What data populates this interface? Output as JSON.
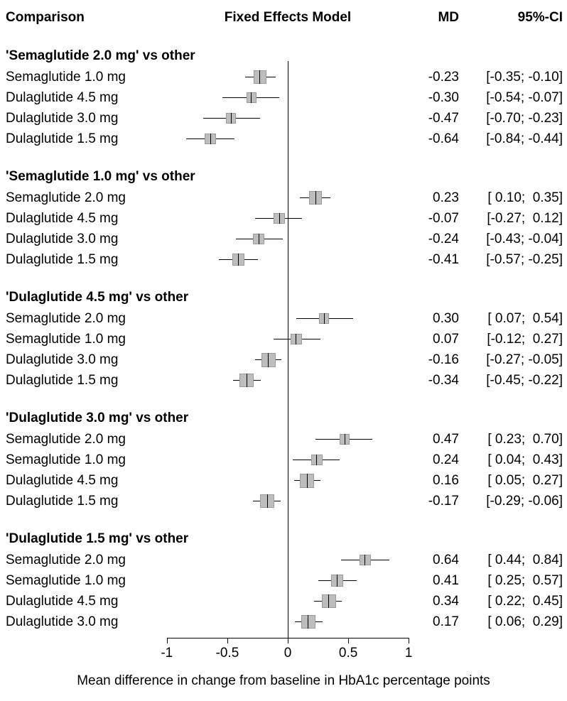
{
  "header": {
    "comparison": "Comparison",
    "model": "Fixed Effects Model",
    "md": "MD",
    "ci": "95%-CI"
  },
  "chart_data": {
    "type": "forest",
    "title": "",
    "xlabel": "Mean difference in change from baseline in HbA1c percentage points",
    "xlim": [
      -1,
      1
    ],
    "x_ticks": [
      -1,
      -0.5,
      0,
      0.5,
      1
    ],
    "x_tick_labels": [
      "-1",
      "-0.5",
      "0",
      "0.5",
      "1"
    ],
    "reference_line": 0,
    "marker_color": "#bdbdbd",
    "groups": [
      {
        "title": "'Semaglutide 2.0 mg' vs other",
        "rows": [
          {
            "label": "Semaglutide 1.0 mg",
            "md": -0.23,
            "lower": -0.35,
            "upper": -0.1,
            "md_text": "-0.23",
            "ci_text": "[-0.35; -0.10]"
          },
          {
            "label": "Dulaglutide 4.5 mg",
            "md": -0.3,
            "lower": -0.54,
            "upper": -0.07,
            "md_text": "-0.30",
            "ci_text": "[-0.54; -0.07]"
          },
          {
            "label": "Dulaglutide 3.0 mg",
            "md": -0.47,
            "lower": -0.7,
            "upper": -0.23,
            "md_text": "-0.47",
            "ci_text": "[-0.70; -0.23]"
          },
          {
            "label": "Dulaglutide 1.5 mg",
            "md": -0.64,
            "lower": -0.84,
            "upper": -0.44,
            "md_text": "-0.64",
            "ci_text": "[-0.84; -0.44]"
          }
        ]
      },
      {
        "title": "'Semaglutide 1.0 mg' vs other",
        "rows": [
          {
            "label": "Semaglutide 2.0 mg",
            "md": 0.23,
            "lower": 0.1,
            "upper": 0.35,
            "md_text": "0.23",
            "ci_text": "[ 0.10;  0.35]"
          },
          {
            "label": "Dulaglutide 4.5 mg",
            "md": -0.07,
            "lower": -0.27,
            "upper": 0.12,
            "md_text": "-0.07",
            "ci_text": "[-0.27;  0.12]"
          },
          {
            "label": "Dulaglutide 3.0 mg",
            "md": -0.24,
            "lower": -0.43,
            "upper": -0.04,
            "md_text": "-0.24",
            "ci_text": "[-0.43; -0.04]"
          },
          {
            "label": "Dulaglutide 1.5 mg",
            "md": -0.41,
            "lower": -0.57,
            "upper": -0.25,
            "md_text": "-0.41",
            "ci_text": "[-0.57; -0.25]"
          }
        ]
      },
      {
        "title": "'Dulaglutide 4.5 mg' vs other",
        "rows": [
          {
            "label": "Semaglutide 2.0 mg",
            "md": 0.3,
            "lower": 0.07,
            "upper": 0.54,
            "md_text": "0.30",
            "ci_text": "[ 0.07;  0.54]"
          },
          {
            "label": "Semaglutide 1.0 mg",
            "md": 0.07,
            "lower": -0.12,
            "upper": 0.27,
            "md_text": "0.07",
            "ci_text": "[-0.12;  0.27]"
          },
          {
            "label": "Dulaglutide 3.0 mg",
            "md": -0.16,
            "lower": -0.27,
            "upper": -0.05,
            "md_text": "-0.16",
            "ci_text": "[-0.27; -0.05]"
          },
          {
            "label": "Dulaglutide 1.5 mg",
            "md": -0.34,
            "lower": -0.45,
            "upper": -0.22,
            "md_text": "-0.34",
            "ci_text": "[-0.45; -0.22]"
          }
        ]
      },
      {
        "title": "'Dulaglutide 3.0 mg' vs other",
        "rows": [
          {
            "label": "Semaglutide 2.0 mg",
            "md": 0.47,
            "lower": 0.23,
            "upper": 0.7,
            "md_text": "0.47",
            "ci_text": "[ 0.23;  0.70]"
          },
          {
            "label": "Semaglutide 1.0 mg",
            "md": 0.24,
            "lower": 0.04,
            "upper": 0.43,
            "md_text": "0.24",
            "ci_text": "[ 0.04;  0.43]"
          },
          {
            "label": "Dulaglutide 4.5 mg",
            "md": 0.16,
            "lower": 0.05,
            "upper": 0.27,
            "md_text": "0.16",
            "ci_text": "[ 0.05;  0.27]"
          },
          {
            "label": "Dulaglutide 1.5 mg",
            "md": -0.17,
            "lower": -0.29,
            "upper": -0.06,
            "md_text": "-0.17",
            "ci_text": "[-0.29; -0.06]"
          }
        ]
      },
      {
        "title": "'Dulaglutide 1.5 mg' vs other",
        "rows": [
          {
            "label": "Semaglutide 2.0 mg",
            "md": 0.64,
            "lower": 0.44,
            "upper": 0.84,
            "md_text": "0.64",
            "ci_text": "[ 0.44;  0.84]"
          },
          {
            "label": "Semaglutide 1.0 mg",
            "md": 0.41,
            "lower": 0.25,
            "upper": 0.57,
            "md_text": "0.41",
            "ci_text": "[ 0.25;  0.57]"
          },
          {
            "label": "Dulaglutide 4.5 mg",
            "md": 0.34,
            "lower": 0.22,
            "upper": 0.45,
            "md_text": "0.34",
            "ci_text": "[ 0.22;  0.45]"
          },
          {
            "label": "Dulaglutide 3.0 mg",
            "md": 0.17,
            "lower": 0.06,
            "upper": 0.29,
            "md_text": "0.17",
            "ci_text": "[ 0.06;  0.29]"
          }
        ]
      }
    ]
  }
}
